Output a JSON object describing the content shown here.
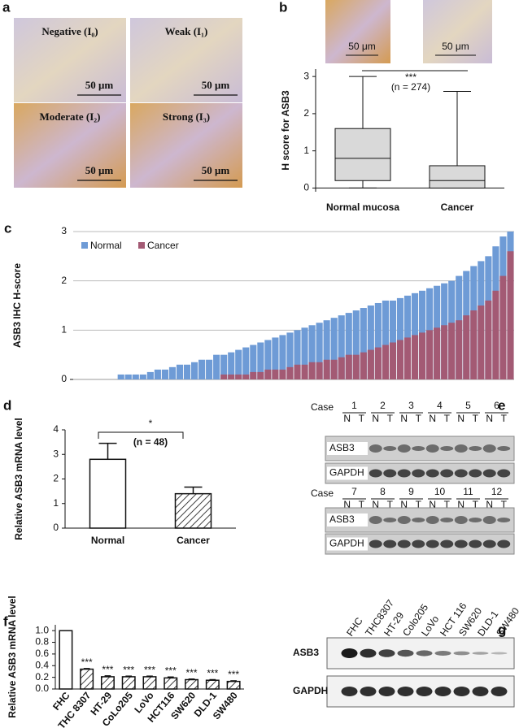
{
  "panel_labels": [
    "a",
    "b",
    "c",
    "d",
    "e",
    "f",
    "g"
  ],
  "panel_a": {
    "labels": [
      "Negative (I₀)",
      "Weak (I₁)",
      "Moderate (I₂)",
      "Strong (I₃)"
    ],
    "scale_bars": [
      "50 μm",
      "50 μm",
      "50 μm",
      "50 μm"
    ]
  },
  "panel_b_images": {
    "scale_bars": [
      "50 μm",
      "50 μm"
    ]
  },
  "chart_data": [
    {
      "type": "box",
      "ylabel": "H score for ASB3",
      "categories": [
        "Normal mucosa",
        "Cancer"
      ],
      "boxes": [
        {
          "min": 0,
          "q1": 0.2,
          "median": 0.8,
          "q3": 1.6,
          "max": 3.0
        },
        {
          "min": 0,
          "q1": 0,
          "median": 0.2,
          "q3": 0.6,
          "max": 2.6
        }
      ],
      "ylim": [
        -0.1,
        3.2
      ],
      "yticks": [
        0,
        1,
        2,
        3
      ],
      "annotations": [
        "***",
        "(n = 274)"
      ],
      "color": "#d9d9d9"
    },
    {
      "type": "bar",
      "ylabel": "ASB3 IHC H-score",
      "grid": true,
      "legend": "top-left",
      "ylim": [
        0,
        3
      ],
      "yticks": [
        0,
        1,
        2,
        3
      ],
      "series": [
        {
          "name": "Normal",
          "color": "#6e9bd6",
          "values": [
            0,
            0,
            0,
            0,
            0,
            0,
            0.1,
            0.1,
            0.1,
            0.1,
            0.15,
            0.2,
            0.2,
            0.25,
            0.3,
            0.3,
            0.35,
            0.4,
            0.4,
            0.5,
            0.5,
            0.55,
            0.6,
            0.65,
            0.7,
            0.75,
            0.8,
            0.85,
            0.9,
            0.95,
            1.0,
            1.05,
            1.1,
            1.15,
            1.2,
            1.25,
            1.3,
            1.35,
            1.4,
            1.45,
            1.5,
            1.55,
            1.6,
            1.6,
            1.65,
            1.7,
            1.75,
            1.8,
            1.85,
            1.9,
            1.95,
            2.0,
            2.1,
            2.2,
            2.3,
            2.4,
            2.5,
            2.7,
            2.9,
            3.0
          ]
        },
        {
          "name": "Cancer",
          "color": "#a35a74",
          "values": [
            0,
            0,
            0,
            0,
            0,
            0,
            0,
            0,
            0,
            0,
            0,
            0,
            0,
            0,
            0,
            0,
            0,
            0,
            0,
            0,
            0.1,
            0.1,
            0.1,
            0.1,
            0.15,
            0.15,
            0.2,
            0.2,
            0.2,
            0.25,
            0.3,
            0.3,
            0.35,
            0.35,
            0.4,
            0.4,
            0.45,
            0.5,
            0.5,
            0.55,
            0.6,
            0.65,
            0.7,
            0.75,
            0.8,
            0.85,
            0.9,
            0.95,
            1.0,
            1.05,
            1.1,
            1.15,
            1.2,
            1.3,
            1.4,
            1.5,
            1.6,
            1.8,
            2.1,
            2.6
          ]
        }
      ]
    },
    {
      "type": "bar",
      "ylabel": "Relative ASB3 mRNA level",
      "categories": [
        "Normal",
        "Cancer"
      ],
      "values": [
        2.8,
        1.4
      ],
      "errors": [
        0.65,
        0.27
      ],
      "hatch": [
        false,
        true
      ],
      "ylim": [
        0,
        4
      ],
      "yticks": [
        0,
        1,
        2,
        3,
        4
      ],
      "annotations": [
        "*",
        "(n = 48)"
      ]
    },
    {
      "type": "bar",
      "ylabel": "Relative ASB3 mRNA level",
      "categories": [
        "FHC",
        "THC 8307",
        "HT-29",
        "CoLo205",
        "LoVo",
        "HCT116",
        "SW620",
        "DLD-1",
        "SW480"
      ],
      "values": [
        1.0,
        0.34,
        0.21,
        0.21,
        0.21,
        0.19,
        0.16,
        0.15,
        0.13
      ],
      "errors": [
        0,
        0.01,
        0.015,
        0.01,
        0.01,
        0.015,
        0.01,
        0.01,
        0.01
      ],
      "hatch": [
        false,
        true,
        true,
        true,
        true,
        true,
        true,
        true,
        true
      ],
      "significance": [
        null,
        "***",
        "***",
        "***",
        "***",
        "***",
        "***",
        "***",
        "***"
      ],
      "ylim": [
        0,
        1.1
      ],
      "yticks": [
        {
          "value": 0,
          "label": "0.0"
        },
        {
          "value": 0.2,
          "label": "0.2"
        },
        {
          "value": 0.4,
          "label": "0.4"
        },
        {
          "value": 0.6,
          "label": "0.6"
        },
        {
          "value": 0.8,
          "label": "0.8"
        },
        {
          "value": 1.0,
          "label": "1.0"
        }
      ]
    }
  ],
  "panel_e": {
    "case_label": "Case",
    "cases": [
      "1",
      "2",
      "3",
      "4",
      "5",
      "6",
      "7",
      "8",
      "9",
      "10",
      "11",
      "12"
    ],
    "lanes": [
      "N",
      "T"
    ],
    "bands": [
      "ASB3",
      "GAPDH"
    ]
  },
  "panel_g": {
    "lanes": [
      "FHC",
      "THC8307",
      "HT-29",
      "Colo205",
      "LoVo",
      "HCT 116",
      "SW620",
      "DLD-1",
      "SW480"
    ],
    "bands": [
      "ASB3",
      "GAPDH"
    ]
  }
}
